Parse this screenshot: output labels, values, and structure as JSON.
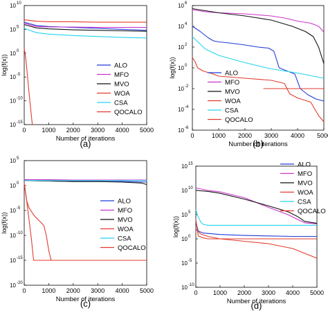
{
  "chart_data": [
    {
      "panel": "(a)",
      "type": "line",
      "ylabel": "log(f(x))",
      "xlabel": "Number of iterations",
      "xlim": [
        0,
        5000
      ],
      "ylim_exp": [
        -15,
        10
      ],
      "y_log": true,
      "x_ticks": [
        "0",
        "1000",
        "2000",
        "3000",
        "4000",
        "5000"
      ],
      "y_ticks": [
        {
          "exp": 10,
          "label": "10"
        },
        {
          "exp": 5,
          "label": "5"
        },
        {
          "exp": 0,
          "label": "0"
        },
        {
          "exp": -5,
          "label": "-5"
        },
        {
          "exp": -10,
          "label": "-10"
        },
        {
          "exp": -15,
          "label": "-15"
        }
      ],
      "legend_position": "bottom-right",
      "series": [
        {
          "name": "ALO",
          "color": "#1f3bd6",
          "x": [
            0,
            500,
            1000,
            2000,
            3000,
            4000,
            5000
          ],
          "y_exp": [
            6.5,
            5.8,
            5.6,
            5.4,
            5.2,
            5.0,
            4.8
          ]
        },
        {
          "name": "MFO",
          "color": "#cc33cc",
          "x": [
            0,
            500,
            1000,
            2000,
            3000,
            4000,
            5000
          ],
          "y_exp": [
            6.3,
            5.6,
            5.5,
            5.5,
            5.4,
            5.4,
            5.4
          ]
        },
        {
          "name": "MVO",
          "color": "#111111",
          "x": [
            0,
            500,
            1000,
            2000,
            3000,
            4000,
            5000
          ],
          "y_exp": [
            6.0,
            5.3,
            5.1,
            4.9,
            4.8,
            4.7,
            4.6
          ]
        },
        {
          "name": "WOA",
          "color": "#e23a2b",
          "x": [
            0,
            500,
            1000,
            2000,
            3000,
            4000,
            5000
          ],
          "y_exp": [
            7.0,
            6.7,
            6.6,
            6.6,
            6.5,
            6.5,
            6.5
          ]
        },
        {
          "name": "CSA",
          "color": "#22d4ee",
          "x": [
            0,
            500,
            1000,
            2000,
            3000,
            4000,
            5000
          ],
          "y_exp": [
            5.2,
            4.3,
            4.0,
            3.7,
            3.5,
            3.3,
            3.2
          ]
        },
        {
          "name": "QOCALO",
          "color": "#e23a2b",
          "x": [
            0,
            60,
            120,
            180,
            240,
            300,
            330
          ],
          "y_exp": [
            1.0,
            -1.0,
            -4.0,
            -7.5,
            -10.5,
            -13.5,
            -15.0
          ]
        }
      ]
    },
    {
      "panel": "(b)",
      "type": "line",
      "ylabel": "log(f(x))",
      "xlabel": "Number of iterations",
      "xlim": [
        0,
        5000
      ],
      "ylim_exp": [
        -6,
        6
      ],
      "y_log": true,
      "x_ticks": [
        "0",
        "1000",
        "2000",
        "3000",
        "4000",
        "5000"
      ],
      "y_ticks": [
        {
          "exp": 6,
          "label": "6"
        },
        {
          "exp": 4,
          "label": "4"
        },
        {
          "exp": 2,
          "label": "2"
        },
        {
          "exp": 0,
          "label": "0"
        },
        {
          "exp": -2,
          "label": "-2"
        },
        {
          "exp": -4,
          "label": "-4"
        },
        {
          "exp": -6,
          "label": "-6"
        }
      ],
      "legend_position": "bottom-right",
      "series": [
        {
          "name": "ALO",
          "color": "#1f3bd6",
          "x": [
            0,
            300,
            600,
            800,
            1000,
            1400,
            2000,
            2500,
            2900,
            3100,
            3300,
            3600,
            3900,
            4100,
            4400,
            4700,
            5000
          ],
          "y_exp": [
            4.0,
            3.5,
            2.9,
            2.6,
            2.5,
            2.4,
            2.2,
            2.0,
            1.9,
            1.6,
            0.0,
            -0.3,
            -0.6,
            -2.0,
            -2.6,
            -3.0,
            -3.2
          ]
        },
        {
          "name": "MFO",
          "color": "#cc33cc",
          "x": [
            0,
            500,
            1000,
            2000,
            3000,
            3500,
            4000,
            4500,
            4800,
            4950,
            5000
          ],
          "y_exp": [
            5.6,
            5.4,
            5.3,
            5.2,
            5.0,
            4.8,
            4.5,
            4.3,
            4.0,
            3.6,
            3.4
          ]
        },
        {
          "name": "MVO",
          "color": "#111111",
          "x": [
            0,
            500,
            1000,
            2000,
            3000,
            3800,
            4300,
            4600,
            4800,
            4950,
            5000
          ],
          "y_exp": [
            5.7,
            5.5,
            5.3,
            5.0,
            4.6,
            4.0,
            3.5,
            3.0,
            2.0,
            0.8,
            0.4
          ]
        },
        {
          "name": "WOA",
          "color": "#e23a2b",
          "x": [
            2700,
            5000
          ],
          "y_exp": [
            -2.0,
            -2.0
          ]
        },
        {
          "name": "CSA",
          "color": "#22d4ee",
          "x": [
            0,
            500,
            1000,
            2000,
            3000,
            4000,
            5000
          ],
          "y_exp": [
            3.0,
            1.8,
            1.2,
            0.5,
            -0.1,
            -0.5,
            -1.0
          ]
        },
        {
          "name": "QOCALO",
          "color": "#e23a2b",
          "x": [
            0,
            100,
            200,
            400,
            800,
            1000,
            2000,
            3000,
            3500,
            3700,
            4000,
            4500,
            4800,
            5000
          ],
          "y_exp": [
            1.0,
            0.6,
            0.0,
            -0.3,
            -0.6,
            -0.8,
            -1.0,
            -1.2,
            -1.5,
            -2.5,
            -2.9,
            -3.3,
            -4.6,
            -5.2
          ]
        }
      ]
    },
    {
      "panel": "(c)",
      "type": "line",
      "ylabel": "log(f(x))",
      "xlabel": "Number of iterations",
      "xlim": [
        0,
        5000
      ],
      "ylim_exp": [
        -20,
        5
      ],
      "y_log": true,
      "x_ticks": [
        "0",
        "1000",
        "2000",
        "3000",
        "4000",
        "5000"
      ],
      "y_ticks": [
        {
          "exp": 5,
          "label": "5"
        },
        {
          "exp": 0,
          "label": "0"
        },
        {
          "exp": -5,
          "label": "-5"
        },
        {
          "exp": -10,
          "label": "-10"
        },
        {
          "exp": -15,
          "label": "-15"
        },
        {
          "exp": -20,
          "label": "-20"
        }
      ],
      "legend_position": "center-right",
      "series": [
        {
          "name": "ALO",
          "color": "#1f3bd6",
          "x": [
            0,
            1000,
            2000,
            3000,
            4000,
            5000
          ],
          "y_exp": [
            1.0,
            0.9,
            0.8,
            0.8,
            0.8,
            0.7
          ]
        },
        {
          "name": "MFO",
          "color": "#cc33cc",
          "x": [
            0,
            1000,
            2000,
            3000,
            4000,
            5000
          ],
          "y_exp": [
            1.2,
            1.2,
            1.1,
            1.1,
            1.1,
            1.1
          ]
        },
        {
          "name": "MVO",
          "color": "#111111",
          "x": [
            0,
            1000,
            2000,
            3000,
            4000,
            4800,
            5000
          ],
          "y_exp": [
            1.0,
            0.9,
            0.8,
            0.8,
            0.7,
            0.5,
            0.2
          ]
        },
        {
          "name": "WOA",
          "color": "#e23a2b",
          "x": [
            0,
            100,
            200,
            300,
            380,
            5000
          ],
          "y_exp": [
            0.5,
            -3.0,
            -7.0,
            -11.0,
            -15.0,
            -15.0
          ]
        },
        {
          "name": "CSA",
          "color": "#22d4ee",
          "x": [
            0,
            1000,
            2000,
            3000,
            4000,
            5000
          ],
          "y_exp": [
            1.0,
            1.0,
            1.0,
            1.0,
            1.0,
            1.0
          ]
        },
        {
          "name": "QOCALO",
          "color": "#e23a2b",
          "x": [
            0,
            100,
            200,
            400,
            600,
            800,
            900,
            1000,
            1100
          ],
          "y_exp": [
            0.5,
            -3.0,
            -4.5,
            -6.0,
            -7.0,
            -8.0,
            -10.0,
            -13.0,
            -15.0
          ]
        }
      ]
    },
    {
      "panel": "(d)",
      "type": "line",
      "ylabel": "log(f(x))",
      "xlabel": "Number of iterations",
      "xlim": [
        0,
        5000
      ],
      "ylim_exp": [
        -10,
        15
      ],
      "y_log": true,
      "x_ticks": [
        "0",
        "1000",
        "2000",
        "3000",
        "4000",
        "5000"
      ],
      "y_ticks": [
        {
          "exp": 15,
          "label": "15"
        },
        {
          "exp": 10,
          "label": "10"
        },
        {
          "exp": 5,
          "label": "5"
        },
        {
          "exp": 0,
          "label": "0"
        },
        {
          "exp": -5,
          "label": "-5"
        },
        {
          "exp": -10,
          "label": "-10"
        }
      ],
      "legend_position": "top-right",
      "series": [
        {
          "name": "ALO",
          "color": "#1f3bd6",
          "x": [
            0,
            100,
            300,
            1000,
            2000,
            3000,
            4000,
            5000
          ],
          "y_exp": [
            3.5,
            1.6,
            1.2,
            0.9,
            0.7,
            0.6,
            0.5,
            0.5
          ]
        },
        {
          "name": "MFO",
          "color": "#cc33cc",
          "x": [
            0,
            500,
            1000,
            2000,
            3000,
            3800,
            4200,
            4500,
            5000
          ],
          "y_exp": [
            10.5,
            10.0,
            9.7,
            8.5,
            6.5,
            5.0,
            4.0,
            3.3,
            3.1
          ]
        },
        {
          "name": "MVO",
          "color": "#111111",
          "x": [
            0,
            500,
            1000,
            2000,
            3000,
            3800,
            4200,
            4500,
            5000
          ],
          "y_exp": [
            10.0,
            9.8,
            9.4,
            8.2,
            6.8,
            5.6,
            4.6,
            3.6,
            3.2
          ]
        },
        {
          "name": "WOA",
          "color": "#e23a2b",
          "x": [
            0,
            100,
            300,
            500,
            1000,
            2000,
            3000,
            4000,
            5000
          ],
          "y_exp": [
            4.0,
            0.6,
            0.2,
            0.0,
            0.0,
            0.0,
            0.0,
            0.0,
            0.0
          ]
        },
        {
          "name": "CSA",
          "color": "#22d4ee",
          "x": [
            0,
            100,
            200,
            300,
            500,
            1000,
            2000,
            3000,
            4000,
            5000
          ],
          "y_exp": [
            6.0,
            4.5,
            3.5,
            3.0,
            2.8,
            2.8,
            2.8,
            2.8,
            2.8,
            2.8
          ]
        },
        {
          "name": "QOCALO",
          "color": "#e23a2b",
          "x": [
            0,
            200,
            500,
            1000,
            2000,
            3000,
            3500,
            4000,
            4500,
            5000
          ],
          "y_exp": [
            2.0,
            1.0,
            0.5,
            0.0,
            -0.5,
            -1.0,
            -1.5,
            -2.0,
            -3.0,
            -4.0
          ]
        }
      ]
    }
  ],
  "panel_labels": [
    "(a)",
    "(b)",
    "(c)",
    "(d)"
  ],
  "axis_text": {
    "xlabel": "Number of iterations",
    "ylabel": "log(f(x))"
  }
}
